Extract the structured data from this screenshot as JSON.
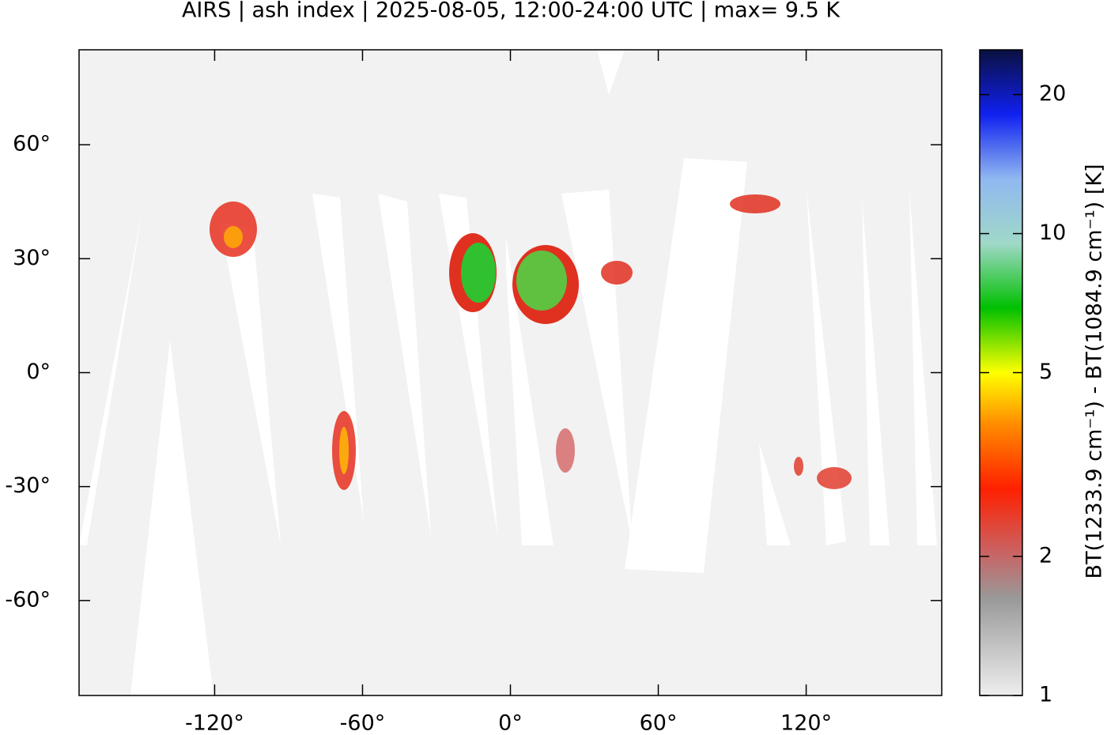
{
  "chart_data": {
    "type": "map",
    "title": "AIRS | ash index | 2025-08-05, 12:00-24:00 UTC | max= 9.5 K",
    "xlim": [
      -175,
      175
    ],
    "ylim": [
      -85,
      85
    ],
    "xticks": [
      {
        "value": -120,
        "label": "-120°"
      },
      {
        "value": -60,
        "label": "-60°"
      },
      {
        "value": 0,
        "label": "0°"
      },
      {
        "value": 60,
        "label": "60°"
      },
      {
        "value": 120,
        "label": "120°"
      }
    ],
    "yticks": [
      {
        "value": -60,
        "label": "-60°"
      },
      {
        "value": -30,
        "label": "-30°"
      },
      {
        "value": 0,
        "label": "0°"
      },
      {
        "value": 30,
        "label": "30°"
      },
      {
        "value": 60,
        "label": "60°"
      }
    ],
    "colorbar": {
      "label": "BT(1233.9 cm⁻¹) - BT(1084.9 cm⁻¹) [K]",
      "clim": [
        1,
        25
      ],
      "log": true,
      "ticks": [
        1,
        2,
        5,
        10,
        20
      ]
    }
  }
}
